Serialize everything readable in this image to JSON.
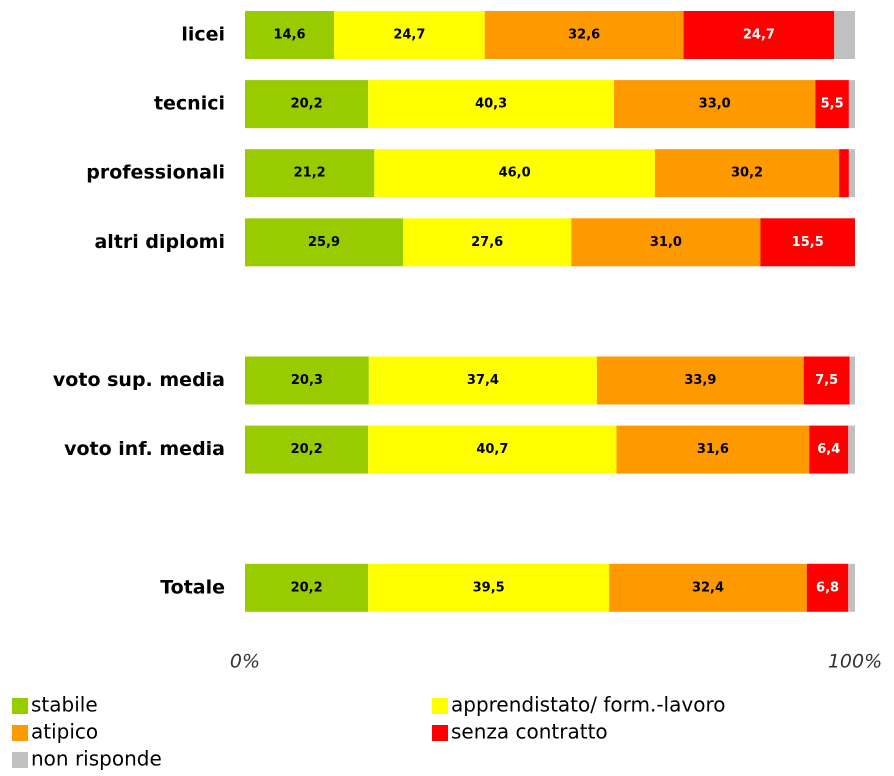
{
  "chart_data": {
    "type": "stacked-bar-horizontal",
    "categories": [
      "licei",
      "tecnici",
      "professionali",
      "altri diplomi",
      null,
      "voto sup. media",
      "voto inf. media",
      null,
      "Totale"
    ],
    "series": [
      {
        "name": "stabile",
        "color": "#99cc00",
        "values": [
          14.6,
          20.2,
          21.2,
          25.9,
          null,
          20.3,
          20.2,
          null,
          20.2
        ],
        "value_labels": [
          "14,6",
          "20,2",
          "21,2",
          "25,9",
          null,
          "20,3",
          "20,2",
          null,
          "20,2"
        ]
      },
      {
        "name": "apprendistato/ form.-lavoro",
        "color": "#ffff00",
        "values": [
          24.7,
          40.3,
          46.0,
          27.6,
          null,
          37.4,
          40.7,
          null,
          39.5
        ],
        "value_labels": [
          "24,7",
          "40,3",
          "46,0",
          "27,6",
          null,
          "37,4",
          "40,7",
          null,
          "39,5"
        ]
      },
      {
        "name": "atipico",
        "color": "#ff9900",
        "values": [
          32.6,
          33.0,
          30.2,
          31.0,
          null,
          33.9,
          31.6,
          null,
          32.4
        ],
        "value_labels": [
          "32,6",
          "33,0",
          "30,2",
          "31,0",
          null,
          "33,9",
          "31,6",
          null,
          "32,4"
        ]
      },
      {
        "name": "senza contratto",
        "color": "#ff0000",
        "values": [
          24.7,
          5.5,
          1.6,
          15.5,
          null,
          7.5,
          6.4,
          null,
          6.8
        ],
        "value_labels": [
          "24,7",
          "5,5",
          null,
          "15,5",
          null,
          "7,5",
          "6,4",
          null,
          "6,8"
        ]
      },
      {
        "name": "non risponde",
        "color": "#c0c0c0",
        "values": [
          3.4,
          1.0,
          1.0,
          0,
          null,
          0.9,
          1.1,
          null,
          1.1
        ],
        "value_labels": [
          null,
          null,
          null,
          null,
          null,
          null,
          null,
          null,
          null
        ]
      }
    ],
    "xlim": [
      0,
      100
    ],
    "xticks": [
      {
        "value": 0,
        "label": "0%"
      },
      {
        "value": 100,
        "label": "100%"
      }
    ]
  }
}
